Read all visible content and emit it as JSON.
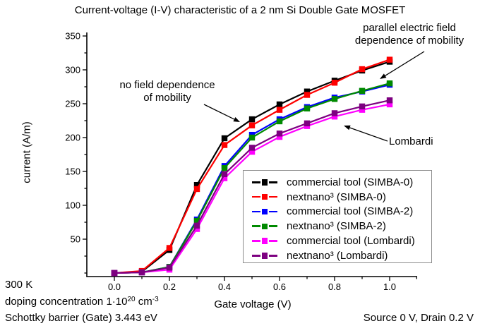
{
  "title": "Current-voltage (I-V) characteristic of a 2 nm Si Double Gate MOSFET",
  "annotations": {
    "no_field": {
      "line1": "no field dependence",
      "line2": "of mobility"
    },
    "parallel": {
      "line1": "parallel electric field",
      "line2": "dependence of mobility"
    },
    "lombardi": {
      "label": "Lombardi"
    }
  },
  "footer": {
    "temperature": "300 K",
    "doping_prefix": "doping concentration 1·10",
    "doping_exp": "20",
    "doping_unit": " cm",
    "doping_unit_exp": "-3",
    "schottky": "Schottky barrier (Gate) 3.443 eV",
    "source_drain": "Source 0 V, Drain 0.2 V"
  },
  "chart_data": {
    "type": "line",
    "title": "Current-voltage (I-V) characteristic of a 2 nm Si Double Gate MOSFET",
    "xlabel": "Gate voltage (V)",
    "ylabel": "current (A/m)",
    "xlim": [
      -0.1,
      1.1
    ],
    "ylim": [
      -5,
      355
    ],
    "grid": false,
    "legend_position": "lower right",
    "x_tick_labels": [
      "0.0",
      "0.2",
      "0.4",
      "0.6",
      "0.8",
      "1.0"
    ],
    "x_tick_values": [
      0.0,
      0.2,
      0.4,
      0.6,
      0.8,
      1.0
    ],
    "x_minor_ticks": [
      0.1,
      0.3,
      0.5,
      0.7,
      0.9,
      1.1
    ],
    "y_tick_labels": [
      "50",
      "100",
      "150",
      "200",
      "250",
      "300",
      "350"
    ],
    "y_tick_values": [
      50,
      100,
      150,
      200,
      250,
      300,
      350
    ],
    "y_minor_ticks": [
      0,
      25,
      75,
      125,
      175,
      225,
      275,
      325
    ],
    "x": [
      0.0,
      0.1,
      0.2,
      0.3,
      0.4,
      0.5,
      0.6,
      0.7,
      0.8,
      0.9,
      1.0
    ],
    "series": [
      {
        "name": "commercial tool (SIMBA-0)",
        "color": "#000000",
        "values": [
          0,
          2,
          34,
          130,
          199,
          227,
          249,
          268,
          284,
          299,
          312
        ]
      },
      {
        "name": "nextnano³ (SIMBA-0)",
        "color": "#fe0000",
        "values": [
          0,
          3,
          37,
          124,
          189,
          218,
          241,
          263,
          281,
          301,
          315
        ]
      },
      {
        "name": "commercial tool (SIMBA-2)",
        "color": "#0000fe",
        "values": [
          0,
          1,
          9,
          79,
          158,
          204,
          227,
          245,
          259,
          268,
          278
        ]
      },
      {
        "name": "nextnano³ (SIMBA-2)",
        "color": "#008a00",
        "values": [
          0,
          1,
          9,
          77,
          155,
          200,
          224,
          243,
          257,
          269,
          280
        ]
      },
      {
        "name": "commercial tool (Lombardi)",
        "color": "#ff00ff",
        "values": [
          0,
          1,
          5,
          65,
          140,
          179,
          201,
          217,
          231,
          241,
          249
        ]
      },
      {
        "name": "nextnano³ (Lombardi)",
        "color": "#7d0080",
        "values": [
          0,
          1,
          8,
          70,
          146,
          185,
          206,
          221,
          236,
          246,
          255
        ]
      }
    ]
  }
}
